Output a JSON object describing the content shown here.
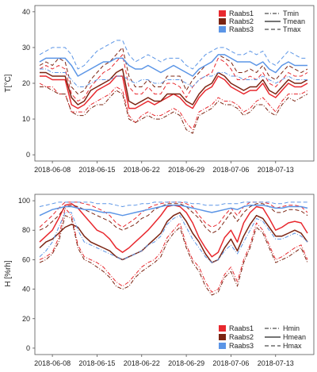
{
  "chart_data": [
    {
      "type": "line",
      "ylabel": "T[°C]",
      "ylim": [
        0,
        40
      ],
      "yticks": [
        "0",
        "10",
        "20",
        "30",
        "40"
      ],
      "xtick_labels": [
        "2018-06-08",
        "2018-06-15",
        "2018-06-22",
        "2018-06-29",
        "2018-07-06",
        "2018-07-13"
      ],
      "x": [
        "06-06",
        "06-07",
        "06-08",
        "06-09",
        "06-10",
        "06-11",
        "06-12",
        "06-13",
        "06-14",
        "06-15",
        "06-16",
        "06-17",
        "06-18",
        "06-19",
        "06-20",
        "06-21",
        "06-22",
        "06-23",
        "06-24",
        "06-25",
        "06-26",
        "06-27",
        "06-28",
        "06-29",
        "06-30",
        "07-01",
        "07-02",
        "07-03",
        "07-04",
        "07-05",
        "07-06",
        "07-07",
        "07-08",
        "07-09",
        "07-10",
        "07-11",
        "07-12",
        "07-13",
        "07-14",
        "07-15",
        "07-16",
        "07-17",
        "07-18"
      ],
      "grid": false,
      "legend_stations": [
        "Raabs1",
        "Raabs2",
        "Raabs3"
      ],
      "legend_stats": [
        "Tmin",
        "Tmean",
        "Tmax"
      ],
      "colors": {
        "Raabs1": "#e8282e",
        "Raabs2": "#7b2412",
        "Raabs3": "#5b95e6"
      },
      "series": [
        {
          "name": "Raabs1",
          "stat": "Tmin",
          "values": [
            20,
            19,
            19,
            17,
            17,
            12,
            12,
            12,
            14,
            15,
            16,
            17,
            19,
            18,
            11,
            9,
            11,
            12,
            11,
            11,
            12,
            13,
            12,
            9,
            7,
            12,
            13,
            14,
            16,
            15,
            15,
            14,
            12,
            13,
            15,
            16,
            14,
            12,
            15,
            17,
            17,
            17,
            18
          ]
        },
        {
          "name": "Raabs1",
          "stat": "Tmean",
          "values": [
            22,
            22,
            21,
            21,
            21,
            14,
            13,
            14,
            16,
            18,
            19,
            20,
            22,
            22,
            13,
            13,
            14,
            15,
            14,
            15,
            16,
            17,
            16,
            14,
            13,
            16,
            18,
            19,
            22,
            21,
            19,
            18,
            17,
            18,
            18,
            20,
            17,
            16,
            18,
            20,
            19,
            19,
            20
          ]
        },
        {
          "name": "Raabs1",
          "stat": "Tmax",
          "values": [
            24,
            25,
            24,
            25,
            24,
            17,
            15,
            16,
            19,
            21,
            23,
            24,
            26,
            28,
            19,
            17,
            17,
            19,
            17,
            17,
            20,
            20,
            19,
            16,
            19,
            21,
            22,
            23,
            27,
            26,
            24,
            21,
            21,
            22,
            21,
            23,
            20,
            19,
            21,
            23,
            22,
            22,
            23
          ]
        },
        {
          "name": "Raabs2",
          "stat": "Tmin",
          "values": [
            19,
            19,
            18,
            17,
            17,
            12,
            11,
            11,
            13,
            14,
            14,
            16,
            18,
            17,
            10,
            9,
            10,
            11,
            10,
            10,
            11,
            12,
            11,
            7,
            6,
            11,
            12,
            13,
            15,
            14,
            14,
            13,
            11,
            12,
            14,
            14,
            12,
            11,
            14,
            16,
            15,
            16,
            17
          ]
        },
        {
          "name": "Raabs2",
          "stat": "Tmean",
          "values": [
            23,
            23,
            22,
            22,
            22,
            16,
            14,
            15,
            18,
            19,
            20,
            21,
            23,
            24,
            15,
            14,
            15,
            16,
            15,
            15,
            17,
            17,
            17,
            15,
            14,
            17,
            19,
            20,
            23,
            22,
            20,
            19,
            18,
            19,
            19,
            21,
            18,
            17,
            19,
            21,
            20,
            20,
            21
          ]
        },
        {
          "name": "Raabs2",
          "stat": "Tmax",
          "values": [
            25,
            26,
            25,
            27,
            26,
            19,
            17,
            18,
            21,
            23,
            25,
            26,
            28,
            30,
            22,
            19,
            19,
            21,
            19,
            19,
            22,
            22,
            22,
            18,
            21,
            23,
            25,
            26,
            28,
            27,
            26,
            23,
            23,
            24,
            23,
            25,
            22,
            21,
            23,
            25,
            24,
            23,
            24
          ]
        },
        {
          "name": "Raabs3",
          "stat": "Tmin",
          "values": [
            24,
            24,
            23,
            23,
            23,
            21,
            19,
            19,
            20,
            21,
            21,
            21,
            22,
            22,
            21,
            20,
            21,
            21,
            20,
            20,
            21,
            21,
            21,
            20,
            19,
            21,
            22,
            22,
            23,
            23,
            22,
            22,
            21,
            21,
            21,
            22,
            21,
            20,
            21,
            22,
            21,
            21,
            21
          ]
        },
        {
          "name": "Raabs3",
          "stat": "Tmean",
          "values": [
            26,
            27,
            27,
            27,
            27,
            25,
            22,
            23,
            24,
            25,
            26,
            26,
            27,
            27,
            25,
            24,
            24,
            25,
            24,
            23,
            24,
            25,
            24,
            23,
            22,
            24,
            25,
            26,
            28,
            28,
            27,
            26,
            26,
            26,
            25,
            26,
            24,
            23,
            25,
            26,
            25,
            25,
            25
          ]
        },
        {
          "name": "Raabs3",
          "stat": "Tmax",
          "values": [
            28,
            29,
            30,
            30,
            30,
            28,
            24,
            25,
            27,
            29,
            30,
            31,
            32,
            32,
            28,
            26,
            27,
            28,
            27,
            26,
            27,
            27,
            27,
            25,
            24,
            26,
            28,
            29,
            30,
            30,
            29,
            28,
            28,
            29,
            28,
            29,
            26,
            25,
            27,
            29,
            28,
            27,
            27
          ]
        }
      ]
    },
    {
      "type": "line",
      "ylabel": "H [%rh]",
      "ylim": [
        0,
        100
      ],
      "yticks": [
        "0",
        "20",
        "40",
        "60",
        "80",
        "100"
      ],
      "xtick_labels": [
        "2018-06-08",
        "2018-06-15",
        "2018-06-22",
        "2018-06-29",
        "2018-07-06",
        "2018-07-13"
      ],
      "x": [
        "06-06",
        "06-07",
        "06-08",
        "06-09",
        "06-10",
        "06-11",
        "06-12",
        "06-13",
        "06-14",
        "06-15",
        "06-16",
        "06-17",
        "06-18",
        "06-19",
        "06-20",
        "06-21",
        "06-22",
        "06-23",
        "06-24",
        "06-25",
        "06-26",
        "06-27",
        "06-28",
        "06-29",
        "06-30",
        "07-01",
        "07-02",
        "07-03",
        "07-04",
        "07-05",
        "07-06",
        "07-07",
        "07-08",
        "07-09",
        "07-10",
        "07-11",
        "07-12",
        "07-13",
        "07-14",
        "07-15",
        "07-16",
        "07-17",
        "07-18"
      ],
      "grid": false,
      "legend_stations": [
        "Raabs1",
        "Raabs2",
        "Raabs3"
      ],
      "legend_stats": [
        "Hmin",
        "Hmean",
        "Hmax"
      ],
      "colors": {
        "Raabs1": "#e8282e",
        "Raabs2": "#7b2412",
        "Raabs3": "#5b95e6"
      },
      "series": [
        {
          "name": "Raabs1",
          "stat": "Hmin",
          "values": [
            60,
            62,
            65,
            75,
            95,
            90,
            70,
            62,
            60,
            58,
            55,
            50,
            45,
            42,
            45,
            50,
            55,
            58,
            60,
            65,
            75,
            80,
            85,
            70,
            60,
            55,
            45,
            38,
            40,
            50,
            55,
            45,
            60,
            70,
            85,
            80,
            70,
            60,
            62,
            65,
            68,
            70,
            60
          ]
        },
        {
          "name": "Raabs1",
          "stat": "Hmean",
          "values": [
            72,
            76,
            80,
            88,
            97,
            98,
            95,
            90,
            85,
            80,
            78,
            74,
            68,
            65,
            68,
            72,
            76,
            80,
            85,
            90,
            96,
            97,
            96,
            92,
            85,
            75,
            68,
            62,
            65,
            75,
            80,
            72,
            85,
            92,
            96,
            95,
            88,
            80,
            82,
            85,
            86,
            85,
            78
          ]
        },
        {
          "name": "Raabs1",
          "stat": "Hmax",
          "values": [
            82,
            86,
            90,
            95,
            99,
            99,
            99,
            98,
            97,
            95,
            93,
            90,
            85,
            82,
            85,
            88,
            92,
            95,
            97,
            98,
            99,
            99,
            99,
            98,
            96,
            90,
            85,
            82,
            84,
            90,
            95,
            90,
            96,
            99,
            99,
            99,
            98,
            95,
            96,
            97,
            97,
            96,
            92
          ]
        },
        {
          "name": "Raabs2",
          "stat": "Hmin",
          "values": [
            58,
            60,
            64,
            72,
            90,
            88,
            68,
            60,
            58,
            55,
            52,
            48,
            42,
            40,
            42,
            48,
            52,
            55,
            58,
            62,
            72,
            78,
            82,
            68,
            58,
            52,
            42,
            36,
            38,
            48,
            52,
            42,
            58,
            68,
            82,
            78,
            68,
            58,
            60,
            62,
            65,
            68,
            58
          ]
        },
        {
          "name": "Raabs2",
          "stat": "Hmean",
          "values": [
            68,
            72,
            74,
            78,
            82,
            84,
            82,
            76,
            72,
            70,
            68,
            66,
            62,
            60,
            62,
            64,
            66,
            70,
            74,
            78,
            86,
            90,
            92,
            86,
            78,
            72,
            64,
            58,
            60,
            68,
            74,
            66,
            76,
            84,
            90,
            88,
            82,
            76,
            76,
            78,
            80,
            78,
            72
          ]
        },
        {
          "name": "Raabs2",
          "stat": "Hmax",
          "values": [
            80,
            82,
            86,
            90,
            96,
            97,
            96,
            94,
            92,
            90,
            88,
            86,
            82,
            80,
            82,
            84,
            88,
            90,
            94,
            96,
            98,
            98,
            98,
            96,
            92,
            88,
            82,
            78,
            80,
            86,
            92,
            86,
            92,
            96,
            98,
            98,
            96,
            92,
            92,
            94,
            94,
            93,
            90
          ]
        },
        {
          "name": "Raabs3",
          "stat": "Hmin",
          "values": [
            62,
            66,
            72,
            82,
            92,
            92,
            80,
            72,
            70,
            68,
            66,
            64,
            62,
            60,
            62,
            64,
            66,
            70,
            72,
            76,
            84,
            88,
            90,
            82,
            74,
            68,
            62,
            58,
            60,
            66,
            70,
            64,
            72,
            80,
            88,
            86,
            80,
            74,
            74,
            76,
            78,
            76,
            72
          ]
        },
        {
          "name": "Raabs3",
          "stat": "Hmean",
          "values": [
            90,
            92,
            94,
            95,
            96,
            96,
            95,
            94,
            94,
            93,
            92,
            92,
            91,
            90,
            91,
            92,
            93,
            94,
            95,
            96,
            97,
            97,
            97,
            96,
            95,
            94,
            93,
            92,
            93,
            94,
            95,
            94,
            96,
            97,
            97,
            97,
            96,
            95,
            95,
            96,
            96,
            96,
            95
          ]
        },
        {
          "name": "Raabs3",
          "stat": "Hmax",
          "values": [
            96,
            97,
            98,
            99,
            99,
            99,
            99,
            99,
            99,
            98,
            98,
            98,
            97,
            96,
            97,
            97,
            98,
            98,
            99,
            99,
            99,
            99,
            99,
            99,
            98,
            98,
            97,
            97,
            97,
            98,
            98,
            98,
            99,
            99,
            99,
            99,
            99,
            98,
            98,
            99,
            99,
            99,
            99
          ]
        }
      ]
    }
  ]
}
